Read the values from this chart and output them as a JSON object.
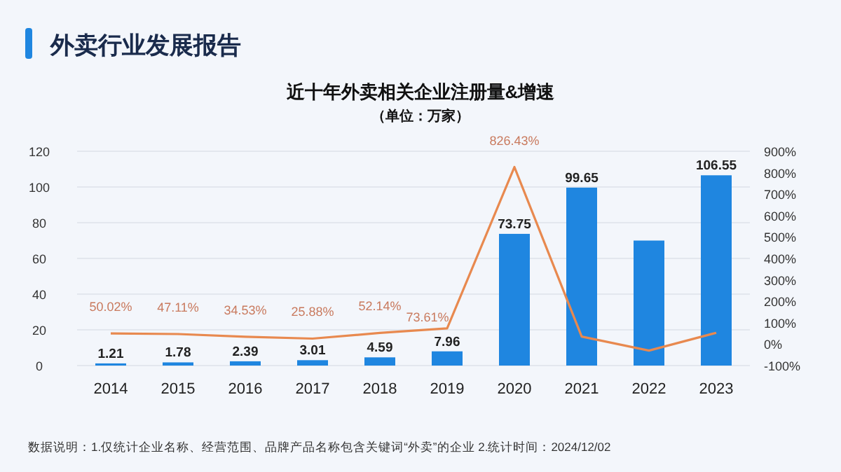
{
  "chart_data": {
    "type": "bar",
    "title": "近十年外卖相关企业注册量&增速",
    "subtitle": "（单位：万家）",
    "annotations": [
      "外卖行业发展报告",
      "数据说明：1.仅统计企业名称、经营范围、品牌产品名称包含关键词“外卖”的企业   2.统计时间：2024/12/02"
    ],
    "categories": [
      "2014",
      "2015",
      "2016",
      "2017",
      "2018",
      "2019",
      "2020",
      "2021",
      "2022",
      "2023"
    ],
    "series": [
      {
        "color": "#1f86e0",
        "values": [
          1.21,
          1.78,
          2.39,
          3.01,
          4.59,
          7.96,
          73.75,
          99.65,
          70,
          106.55
        ],
        "value_labels": [
          "1.21",
          "1.78",
          "2.39",
          "3.01",
          "4.59",
          "7.96",
          "73.75",
          "99.65",
          null,
          "106.55"
        ]
      },
      {
        "type": "line",
        "axis": "y2",
        "color": "#e8894f",
        "values": [
          50.02,
          47.11,
          34.53,
          25.88,
          52.14,
          73.61,
          826.43,
          35,
          -30,
          53
        ],
        "value_labels": [
          "50.02%",
          "47.11%",
          "34.53%",
          "25.88%",
          "52.14%",
          "73.61%",
          "826.43%",
          null,
          null,
          null
        ]
      }
    ],
    "ylim": [
      0,
      120
    ],
    "yticks": [
      0,
      20,
      40,
      60,
      80,
      100,
      120
    ],
    "y2lim": [
      -100,
      900
    ],
    "y2ticks": [
      {
        "value": -100,
        "label": "-100%"
      },
      {
        "value": 0,
        "label": "0%"
      },
      {
        "value": 100,
        "label": "100%"
      },
      {
        "value": 200,
        "label": "200%"
      },
      {
        "value": 300,
        "label": "300%"
      },
      {
        "value": 400,
        "label": "400%"
      },
      {
        "value": 500,
        "label": "500%"
      },
      {
        "value": 600,
        "label": "600%"
      },
      {
        "value": 700,
        "label": "700%"
      },
      {
        "value": 800,
        "label": "800%"
      },
      {
        "value": 900,
        "label": "900%"
      }
    ],
    "grid": "y"
  }
}
